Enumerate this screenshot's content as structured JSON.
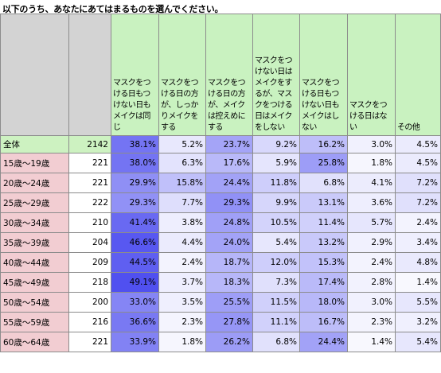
{
  "title": "以下のうち、あなたにあてはまるものを選んでください。",
  "chart_data": {
    "type": "table",
    "columns": [
      "マスクをつける日もつけない日もメイクは同じ",
      "マスクをつける日の方が、しっかりメイクをする",
      "マスクをつける日の方が、メイクは控えめにする",
      "マスクをつけない日はメイクをするが、マスクをつける日はメイクをしない",
      "マスクをつける日もつけない日もメイクはしない",
      "マスクをつける日はない",
      "その他"
    ],
    "rows": [
      {
        "label": "全体",
        "n": "2142",
        "values": [
          "38.1%",
          "5.2%",
          "23.7%",
          "9.2%",
          "16.2%",
          "3.0%",
          "4.5%"
        ]
      },
      {
        "label": "15歳～19歳",
        "n": "221",
        "values": [
          "38.0%",
          "6.3%",
          "17.6%",
          "5.9%",
          "25.8%",
          "1.8%",
          "4.5%"
        ]
      },
      {
        "label": "20歳～24歳",
        "n": "221",
        "values": [
          "29.9%",
          "15.8%",
          "24.4%",
          "11.8%",
          "6.8%",
          "4.1%",
          "7.2%"
        ]
      },
      {
        "label": "25歳～29歳",
        "n": "222",
        "values": [
          "29.3%",
          "7.7%",
          "29.3%",
          "9.9%",
          "13.1%",
          "3.6%",
          "7.2%"
        ]
      },
      {
        "label": "30歳～34歳",
        "n": "210",
        "values": [
          "41.4%",
          "3.8%",
          "24.8%",
          "10.5%",
          "11.4%",
          "5.7%",
          "2.4%"
        ]
      },
      {
        "label": "35歳～39歳",
        "n": "204",
        "values": [
          "46.6%",
          "4.4%",
          "24.0%",
          "5.4%",
          "13.2%",
          "2.9%",
          "3.4%"
        ]
      },
      {
        "label": "40歳～44歳",
        "n": "209",
        "values": [
          "44.5%",
          "2.4%",
          "18.7%",
          "12.0%",
          "15.3%",
          "2.4%",
          "4.8%"
        ]
      },
      {
        "label": "45歳～49歳",
        "n": "218",
        "values": [
          "49.1%",
          "3.7%",
          "18.3%",
          "7.3%",
          "17.4%",
          "2.8%",
          "1.4%"
        ]
      },
      {
        "label": "50歳～54歳",
        "n": "200",
        "values": [
          "33.0%",
          "3.5%",
          "25.5%",
          "11.5%",
          "18.0%",
          "3.0%",
          "5.5%"
        ]
      },
      {
        "label": "55歳～59歳",
        "n": "216",
        "values": [
          "36.6%",
          "2.3%",
          "27.8%",
          "11.1%",
          "16.7%",
          "2.3%",
          "3.2%"
        ]
      },
      {
        "label": "60歳～64歳",
        "n": "221",
        "values": [
          "33.9%",
          "1.8%",
          "26.2%",
          "6.8%",
          "24.4%",
          "1.4%",
          "5.4%"
        ]
      }
    ],
    "colors": {
      "header_options": "#c9f2c0",
      "header_blank": "#d3d3d3",
      "total_row": "#cdf2c1",
      "age_labels": "#f2cdd2",
      "heat_high": "#5050f0",
      "heat_low": "#ffffff"
    }
  }
}
